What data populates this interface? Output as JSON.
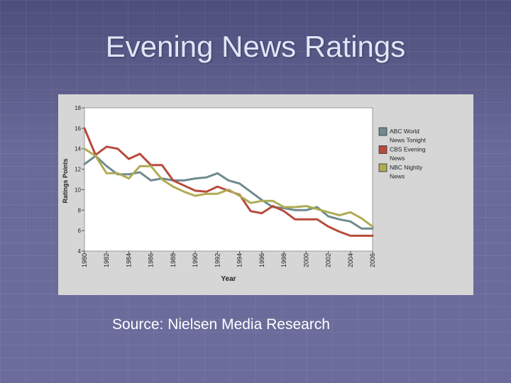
{
  "slide": {
    "title": "Evening News Ratings",
    "source": "Source: Nielsen Media Research"
  },
  "chart_data": {
    "type": "line",
    "xlabel": "Year",
    "ylabel": "Ratings Points",
    "xlim": [
      1980,
      2006
    ],
    "ylim": [
      4,
      18
    ],
    "yticks": [
      4,
      6,
      8,
      10,
      12,
      14,
      16,
      18
    ],
    "xticks": [
      1980,
      1982,
      1984,
      1986,
      1988,
      1990,
      1992,
      1994,
      1996,
      1998,
      2000,
      2002,
      2004,
      2006
    ],
    "grid": false,
    "legend_position": "right",
    "x": [
      1980,
      1981,
      1982,
      1983,
      1984,
      1985,
      1986,
      1987,
      1988,
      1989,
      1990,
      1991,
      1992,
      1993,
      1994,
      1995,
      1996,
      1997,
      1998,
      1999,
      2000,
      2001,
      2002,
      2003,
      2004,
      2005,
      2006
    ],
    "series": [
      {
        "name": "ABC World News Tonight",
        "color": "#6f8a8f",
        "values": [
          12.5,
          13.3,
          12.3,
          11.5,
          11.5,
          11.7,
          10.9,
          11.1,
          10.9,
          10.9,
          11.1,
          11.2,
          11.6,
          10.9,
          10.6,
          9.8,
          9.0,
          8.3,
          8.2,
          8.0,
          8.0,
          8.3,
          7.4,
          7.1,
          6.9,
          6.2,
          6.2
        ]
      },
      {
        "name": "CBS Evening News",
        "color": "#b84a3c",
        "values": [
          16.0,
          13.4,
          14.2,
          14.0,
          13.0,
          13.5,
          12.4,
          12.4,
          10.9,
          10.4,
          9.9,
          9.8,
          10.3,
          9.9,
          9.5,
          7.9,
          7.7,
          8.4,
          7.9,
          7.1,
          7.1,
          7.1,
          6.4,
          5.9,
          5.5,
          5.5,
          5.5
        ]
      },
      {
        "name": "NBC Nightly News",
        "color": "#aeac54",
        "values": [
          14.0,
          13.3,
          11.6,
          11.6,
          11.1,
          12.3,
          12.3,
          11.0,
          10.3,
          9.8,
          9.4,
          9.6,
          9.6,
          10.0,
          9.4,
          8.7,
          8.9,
          8.9,
          8.3,
          8.3,
          8.4,
          8.1,
          7.8,
          7.5,
          7.8,
          7.2,
          6.4
        ]
      }
    ]
  }
}
